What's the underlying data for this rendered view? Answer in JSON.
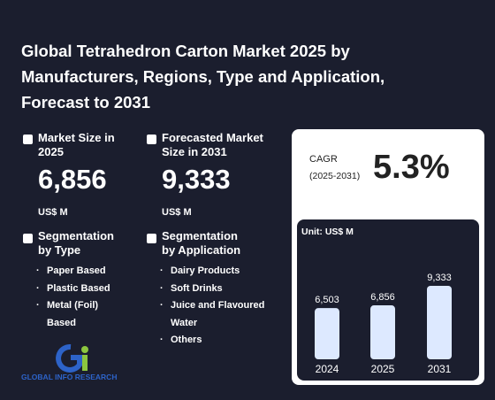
{
  "header": {
    "title": "Global Tetrahedron Carton Market 2025 by Manufacturers, Regions, Type and Application, Forecast to 2031"
  },
  "market_size": {
    "label": "Market Size in 2025",
    "value": "6,856",
    "unit": "US$ M"
  },
  "forecast": {
    "label": "Forecasted Market Size in 2031",
    "value": "9,333",
    "unit": "US$ M"
  },
  "cagr": {
    "label": "CAGR",
    "period": "(2025-2031)",
    "value": "5.3%"
  },
  "segmentation_type": {
    "title": "Segmentation by Type",
    "items": [
      "Paper Based",
      "Plastic Based",
      "Metal (Foil) Based"
    ]
  },
  "segmentation_application": {
    "title": "Segmentation by Application",
    "items": [
      "Dairy Products",
      "Soft Drinks",
      "Juice and Flavoured Water",
      "Others"
    ]
  },
  "chart_data": {
    "type": "bar",
    "unit_label": "Unit: US$ M",
    "categories": [
      "2024",
      "2025",
      "2031"
    ],
    "values": [
      6503,
      6856,
      9333
    ],
    "value_labels": [
      "6,503",
      "6,856",
      "9,333"
    ],
    "color": "#dde9ff"
  },
  "logo": {
    "text": "GLOBAL INFO RESEARCH"
  }
}
